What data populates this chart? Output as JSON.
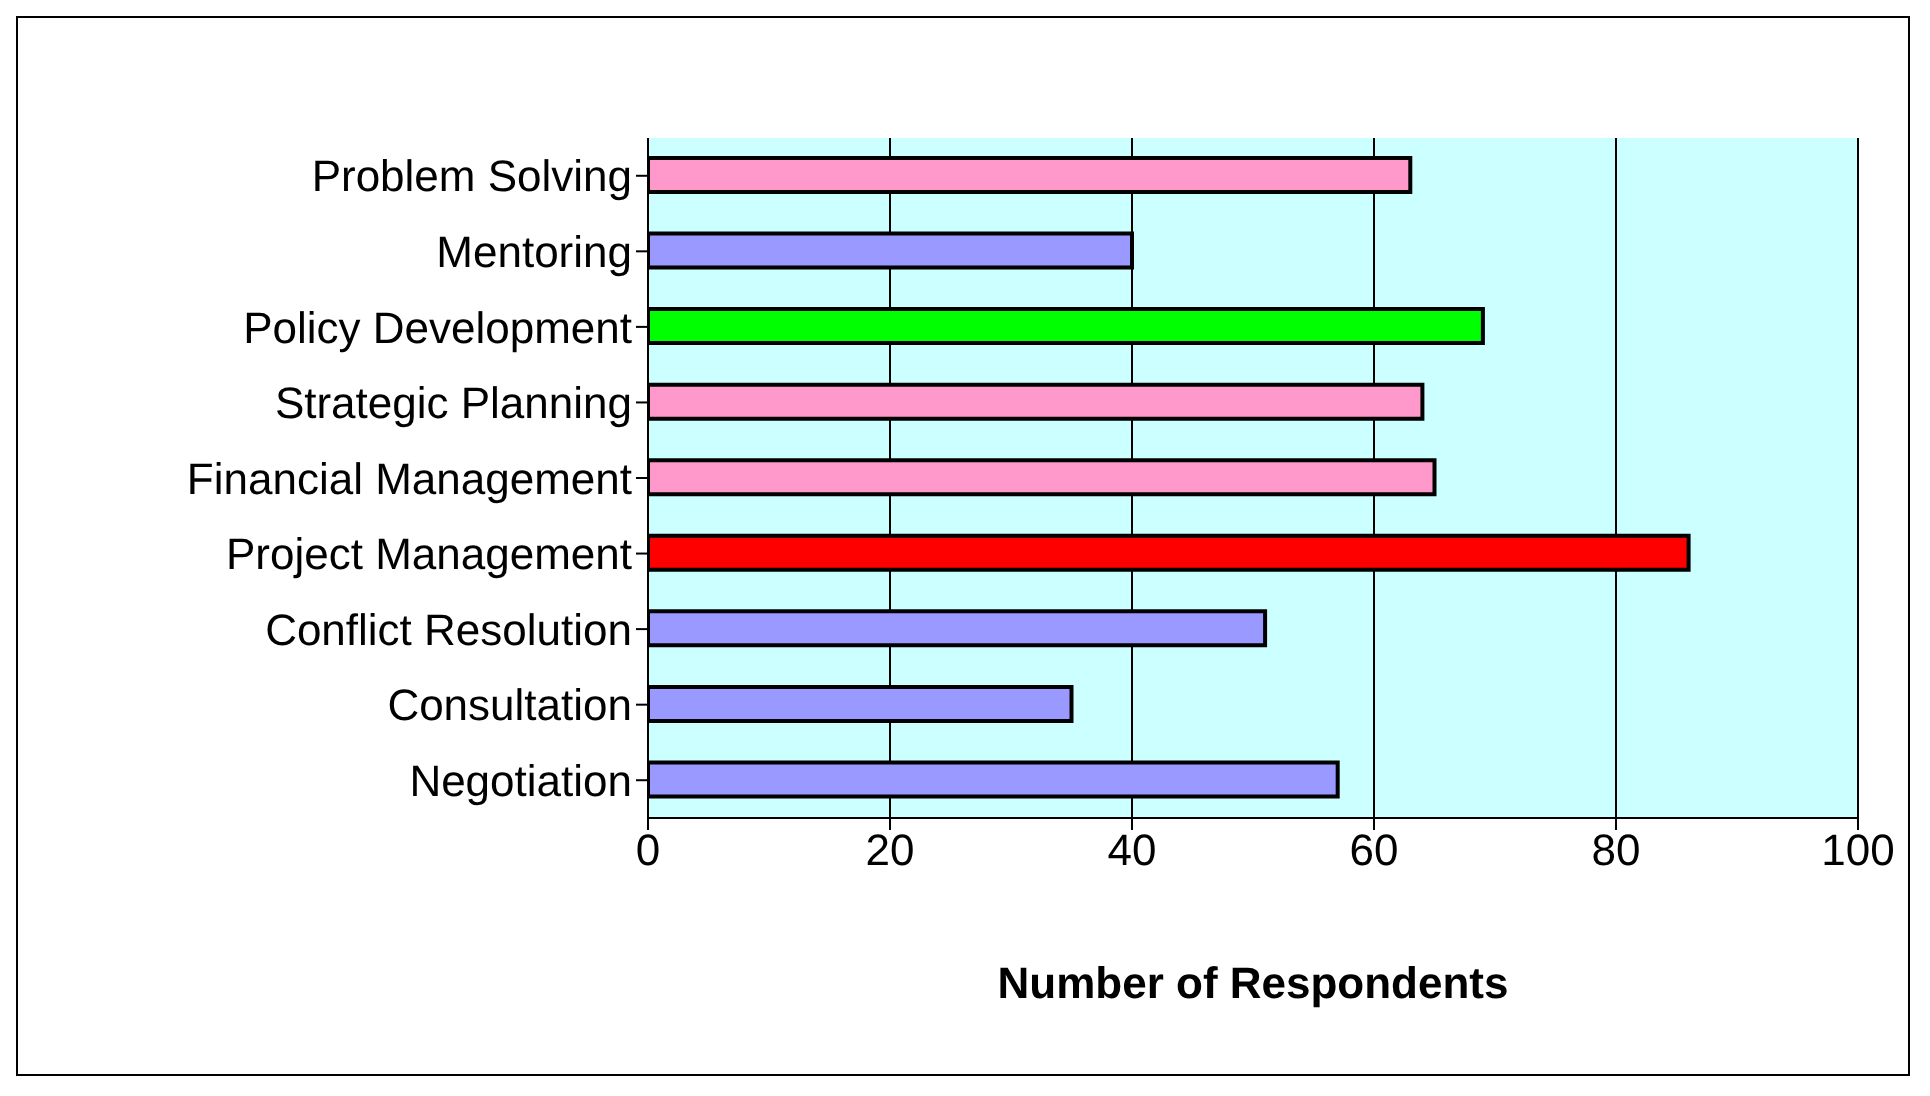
{
  "chart_data": {
    "type": "bar",
    "orientation": "horizontal",
    "xlabel": "Number of Respondents",
    "categories": [
      "Problem Solving",
      "Mentoring",
      "Policy Development",
      "Strategic Planning",
      "Financial Management",
      "Project Management",
      "Conflict Resolution",
      "Consultation",
      "Negotiation"
    ],
    "values": [
      63,
      40,
      69,
      64,
      65,
      86,
      51,
      35,
      57
    ],
    "colors": [
      "#ff99cc",
      "#9999ff",
      "#00ff00",
      "#ff99cc",
      "#ff99cc",
      "#ff0000",
      "#9999ff",
      "#9999ff",
      "#9999ff"
    ],
    "xlim": [
      0,
      100
    ],
    "xticks": [
      0,
      20,
      40,
      60,
      80,
      100
    ],
    "grid": "x",
    "legend": false
  }
}
